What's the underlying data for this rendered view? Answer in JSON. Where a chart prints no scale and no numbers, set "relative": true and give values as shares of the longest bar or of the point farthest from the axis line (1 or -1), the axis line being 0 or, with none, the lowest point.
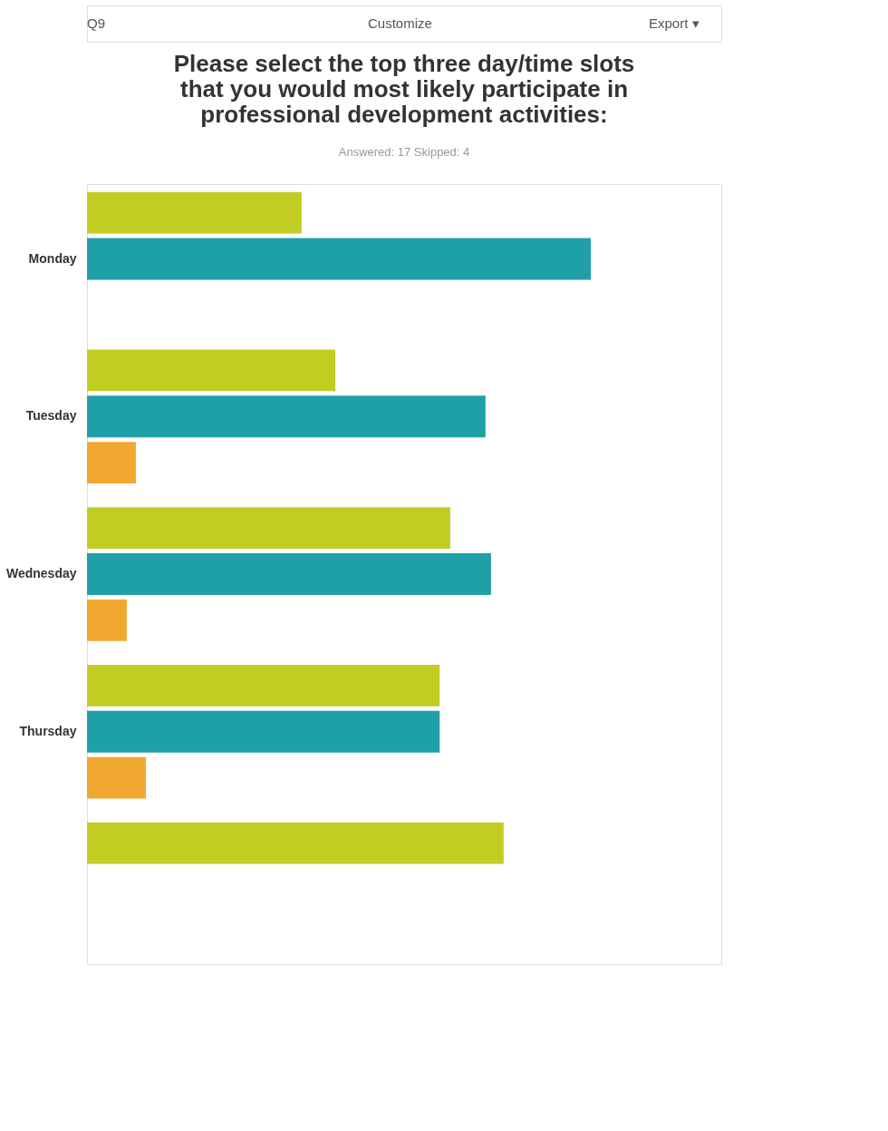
{
  "chart_data": {
    "type": "bar",
    "orientation": "horizontal",
    "relative": true,
    "title": [
      "Please select the top three day/time slots",
      "that you would most likely participate in",
      "professional development activities:"
    ],
    "subtitle": "Answered: 17    Skipped: 4",
    "annotations": [
      "Q9",
      "Customize",
      "Export ▾"
    ],
    "categories": [
      "Monday",
      "Tuesday",
      "Wednesday",
      "Thursday",
      null
    ],
    "series": [
      {
        "color": "#c2cd23",
        "values": [
          0.426,
          0.493,
          0.721,
          0.7,
          0.827
        ]
      },
      {
        "color": "#1fa0a8",
        "values": [
          1,
          0.791,
          0.802,
          0.7,
          null
        ]
      },
      {
        "color": "#f0a830",
        "values": [
          null,
          0.097,
          0.079,
          0.117,
          null
        ]
      }
    ],
    "legend": false
  }
}
